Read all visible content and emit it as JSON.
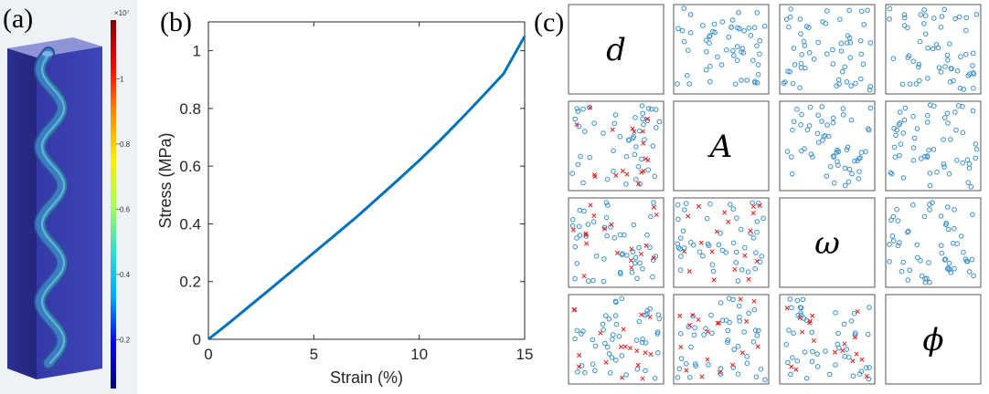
{
  "panels": [
    {
      "label": "(a)",
      "colorbar": {
        "exponent": "×10⁷",
        "ticks": [
          {
            "value": 0.2,
            "label": "0.2"
          },
          {
            "value": 0.4,
            "label": "0.4"
          },
          {
            "value": 0.6,
            "label": "0.6"
          },
          {
            "value": 0.8,
            "label": "0.8"
          },
          {
            "value": 1.0,
            "label": "1"
          }
        ],
        "range": [
          0.05,
          1.18
        ],
        "colors": [
          "#00007f",
          "#0000ff",
          "#00aaff",
          "#33ddcc",
          "#aaff55",
          "#ffee00",
          "#ff8800",
          "#ff0000",
          "#7f0000"
        ]
      },
      "model_colors": {
        "block": "#3a3fb0",
        "wire": "#3d7cc4"
      }
    },
    {
      "label": "(b)"
    },
    {
      "label": "(c)",
      "diagonal_vars": [
        "d",
        "A",
        "ω",
        "ϕ"
      ],
      "marker_colors": {
        "circle": "#3a8fd0",
        "cross": "#e02020"
      }
    }
  ],
  "chart_data": {
    "type": "line",
    "xlabel": "Strain (%)",
    "ylabel": "Stress (MPa)",
    "xlim": [
      0,
      15
    ],
    "ylim": [
      0,
      1.1
    ],
    "xticks": [
      0,
      5,
      10,
      15
    ],
    "yticks": [
      0,
      0.2,
      0.4,
      0.6,
      0.8,
      1
    ],
    "xtick_labels": [
      "0",
      "5",
      "10",
      "15"
    ],
    "ytick_labels": [
      "0",
      "0.2",
      "0.4",
      "0.6",
      "0.8",
      "1"
    ],
    "grid": false,
    "series": [
      {
        "color": "#0072bd",
        "x": [
          0,
          1,
          2,
          3,
          4,
          5,
          6,
          7,
          8,
          9,
          10,
          11,
          12,
          13,
          14,
          15
        ],
        "y": [
          0,
          0.058,
          0.118,
          0.178,
          0.239,
          0.3,
          0.361,
          0.422,
          0.487,
          0.553,
          0.62,
          0.69,
          0.765,
          0.842,
          0.92,
          1.05
        ]
      }
    ]
  }
}
